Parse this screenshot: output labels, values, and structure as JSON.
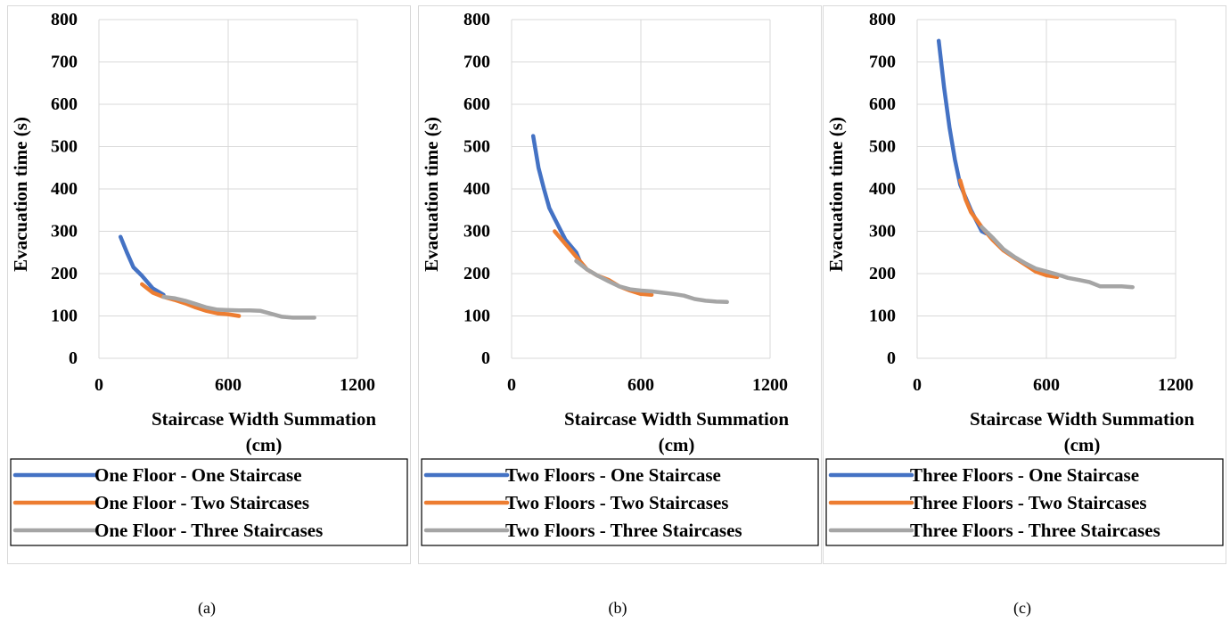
{
  "chart_data": [
    {
      "type": "line",
      "caption": "(a)",
      "xlabel": "Staircase Width Summation (cm)",
      "xlabel_lines": [
        "Staircase Width Summation",
        "(cm)"
      ],
      "ylabel": "Evacuation time (s)",
      "xlim": [
        0,
        1200
      ],
      "ylim": [
        0,
        800
      ],
      "xticks": [
        0,
        600,
        1200
      ],
      "yticks": [
        0,
        100,
        200,
        300,
        400,
        500,
        600,
        700,
        800
      ],
      "grid": true,
      "legend_position": "bottom",
      "series": [
        {
          "name": "One Floor - One Staircase",
          "color": "#4472C4",
          "x": [
            100,
            130,
            160,
            200,
            250,
            300
          ],
          "y": [
            287,
            250,
            215,
            195,
            165,
            150
          ]
        },
        {
          "name": "One Floor - Two Staircases",
          "color": "#ED7D31",
          "x": [
            200,
            250,
            300,
            350,
            400,
            450,
            500,
            550,
            600,
            650
          ],
          "y": [
            175,
            155,
            145,
            138,
            130,
            120,
            112,
            106,
            104,
            100
          ]
        },
        {
          "name": "One Floor - Three Staircases",
          "color": "#A5A5A5",
          "x": [
            300,
            350,
            400,
            450,
            500,
            550,
            600,
            650,
            700,
            750,
            800,
            850,
            900,
            950,
            1000
          ],
          "y": [
            145,
            142,
            136,
            128,
            120,
            115,
            114,
            113,
            113,
            112,
            105,
            98,
            96,
            96,
            96
          ]
        }
      ]
    },
    {
      "type": "line",
      "caption": "(b)",
      "xlabel": "Staircase Width Summation (cm)",
      "xlabel_lines": [
        "Staircase Width Summation",
        "(cm)"
      ],
      "ylabel": "Evacuation time (s)",
      "xlim": [
        0,
        1200
      ],
      "ylim": [
        0,
        800
      ],
      "xticks": [
        0,
        600,
        1200
      ],
      "yticks": [
        0,
        100,
        200,
        300,
        400,
        500,
        600,
        700,
        800
      ],
      "grid": true,
      "legend_position": "bottom",
      "series": [
        {
          "name": "Two Floors - One Staircase",
          "color": "#4472C4",
          "x": [
            100,
            125,
            150,
            175,
            200,
            250,
            300,
            325
          ],
          "y": [
            525,
            450,
            400,
            355,
            330,
            280,
            250,
            220
          ]
        },
        {
          "name": "Two Floors - Two Staircases",
          "color": "#ED7D31",
          "x": [
            200,
            250,
            300,
            350,
            400,
            450,
            500,
            550,
            600,
            650
          ],
          "y": [
            300,
            270,
            240,
            210,
            195,
            185,
            170,
            160,
            152,
            150
          ]
        },
        {
          "name": "Two Floors - Three Staircases",
          "color": "#A5A5A5",
          "x": [
            300,
            350,
            400,
            450,
            500,
            550,
            600,
            650,
            700,
            750,
            800,
            850,
            900,
            950,
            1000
          ],
          "y": [
            230,
            210,
            195,
            182,
            170,
            163,
            160,
            158,
            155,
            152,
            148,
            140,
            136,
            134,
            133
          ]
        }
      ]
    },
    {
      "type": "line",
      "caption": "(c)",
      "xlabel": "Staircase Width Summation (cm)",
      "xlabel_lines": [
        "Staircase Width Summation",
        "(cm)"
      ],
      "ylabel": "Evacuation time (s)",
      "xlim": [
        0,
        1200
      ],
      "ylim": [
        0,
        800
      ],
      "xticks": [
        0,
        600,
        1200
      ],
      "yticks": [
        0,
        100,
        200,
        300,
        400,
        500,
        600,
        700,
        800
      ],
      "grid": true,
      "legend_position": "bottom",
      "series": [
        {
          "name": "Three Floors - One Staircase",
          "color": "#4472C4",
          "x": [
            100,
            125,
            150,
            175,
            200,
            250,
            300,
            320
          ],
          "y": [
            750,
            640,
            545,
            470,
            410,
            350,
            300,
            295
          ]
        },
        {
          "name": "Three Floors - Two Staircases",
          "color": "#ED7D31",
          "x": [
            200,
            225,
            250,
            300,
            350,
            400,
            450,
            500,
            550,
            600,
            650
          ],
          "y": [
            420,
            375,
            345,
            310,
            280,
            255,
            238,
            222,
            205,
            196,
            192
          ]
        },
        {
          "name": "Three Floors - Three Staircases",
          "color": "#A5A5A5",
          "x": [
            300,
            350,
            400,
            450,
            500,
            550,
            600,
            650,
            700,
            750,
            800,
            850,
            900,
            950,
            1000
          ],
          "y": [
            310,
            285,
            258,
            240,
            225,
            212,
            205,
            198,
            190,
            185,
            180,
            170,
            170,
            170,
            168
          ]
        }
      ]
    }
  ]
}
